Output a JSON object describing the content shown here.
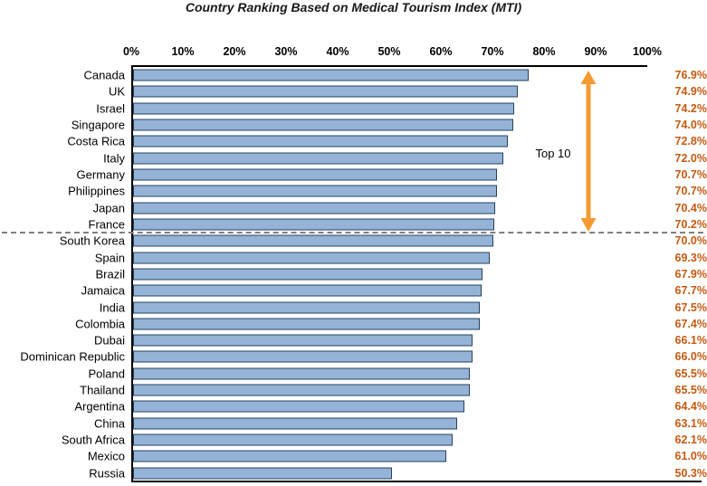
{
  "chart_data": {
    "type": "bar",
    "orientation": "horizontal",
    "title": "Country Ranking Based on Medical Tourism Index (MTI)",
    "xlabel": "",
    "ylabel": "",
    "xlim": [
      0,
      100
    ],
    "x_ticks": [
      "0%",
      "10%",
      "20%",
      "30%",
      "40%",
      "50%",
      "60%",
      "70%",
      "80%",
      "90%",
      "100%"
    ],
    "categories": [
      "Canada",
      "UK",
      "Israel",
      "Singapore",
      "Costa Rica",
      "Italy",
      "Germany",
      "Philippines",
      "Japan",
      "France",
      "South Korea",
      "Spain",
      "Brazil",
      "Jamaica",
      "India",
      "Colombia",
      "Dubai",
      "Dominican Republic",
      "Poland",
      "Thailand",
      "Argentina",
      "China",
      "South Africa",
      "Mexico",
      "Russia"
    ],
    "values": [
      76.9,
      74.9,
      74.2,
      74.0,
      72.8,
      72.0,
      70.7,
      70.7,
      70.4,
      70.2,
      70.0,
      69.3,
      67.9,
      67.7,
      67.5,
      67.4,
      66.1,
      66.0,
      65.5,
      65.5,
      64.4,
      63.1,
      62.1,
      61.0,
      50.3
    ],
    "value_labels": [
      "76.9%",
      "74.9%",
      "74.2%",
      "74.0%",
      "72.8%",
      "72.0%",
      "70.7%",
      "70.7%",
      "70.4%",
      "70.2%",
      "70.0%",
      "69.3%",
      "67.9%",
      "67.7%",
      "67.5%",
      "67.4%",
      "66.1%",
      "66.0%",
      "65.5%",
      "65.5%",
      "64.4%",
      "63.1%",
      "62.1%",
      "61.0%",
      "50.3%"
    ],
    "annotation": {
      "label": "Top 10",
      "top_n": 10,
      "arrow_at_percent": 90
    },
    "grid": "off",
    "legend": "none",
    "colors": {
      "bar_fill": "#95B3D7",
      "bar_border": "#24435F",
      "value_label": "#C55A11",
      "arrow": "#F59B31",
      "dashed_line": "#7F7F7F",
      "axis_line": "#000000"
    }
  }
}
